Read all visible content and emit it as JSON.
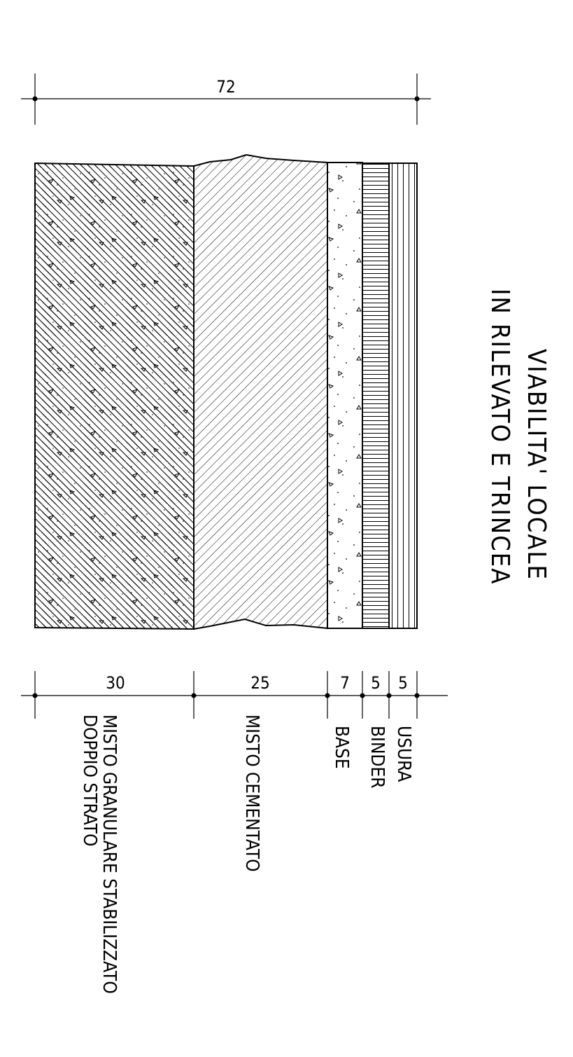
{
  "title": {
    "line1": "VIABILITA' LOCALE",
    "line2": "IN RILEVATO E TRINCEA"
  },
  "total_dimension": "72",
  "layers": [
    {
      "id": "misto-granulare",
      "thickness": "30",
      "label_lines": [
        "MISTO GRANULARE STABILIZZATO",
        "DOPPIO STRATO"
      ]
    },
    {
      "id": "misto-cementato",
      "thickness": "25",
      "label_lines": [
        "MISTO CEMENTATO"
      ]
    },
    {
      "id": "base",
      "thickness": "7",
      "label_lines": [
        "BASE"
      ]
    },
    {
      "id": "binder",
      "thickness": "5",
      "label_lines": [
        "BINDER"
      ]
    },
    {
      "id": "usura",
      "thickness": "5",
      "label_lines": [
        "USURA"
      ]
    }
  ]
}
